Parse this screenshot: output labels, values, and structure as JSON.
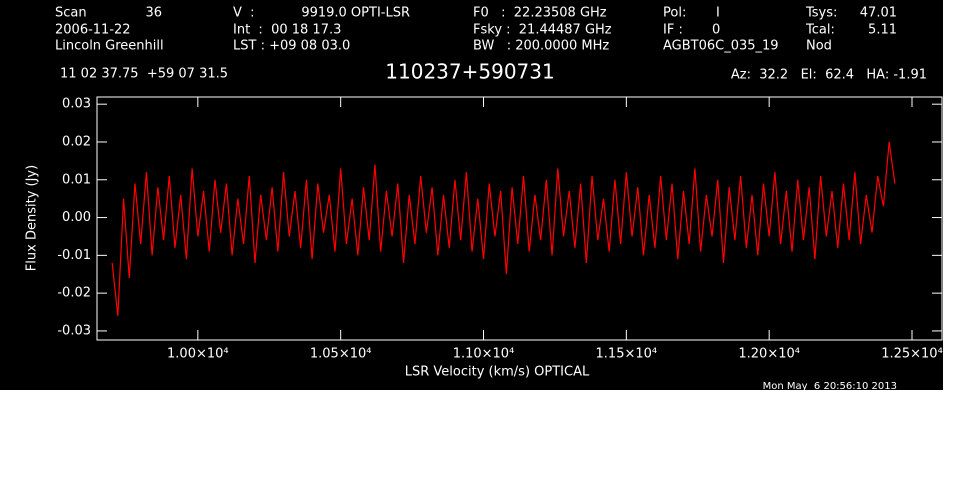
{
  "header": {
    "scan_label": "Scan",
    "scan": "36",
    "date": "2006-11-22",
    "observer": "Lincoln Greenhill",
    "v_label": "V  :",
    "v": "9919.0 OPTI-LSR",
    "int": "Int  :  00 18 17.3",
    "lst": "LST : +09 08 03.0",
    "f0": "F0   :  22.23508 GHz",
    "fsky": "Fsky :  21.44487 GHz",
    "bw": "BW   : 200.0000 MHz",
    "pol_label": "Pol:",
    "pol": "I",
    "if_label": "IF :",
    "if": "0",
    "project": "AGBT06C_035_19",
    "tsys_label": "Tsys:",
    "tsys": "47.01",
    "tcal_label": "Tcal:",
    "tcal": "5.11",
    "proc": "Nod",
    "coords": "11 02 37.75  +59 07 31.5",
    "azel": "Az:  32.2   El:  62.4   HA: -1.91",
    "timestamp": "Mon May  6 20:56:10 2013"
  },
  "chart_data": {
    "type": "line",
    "title": "110237+590731",
    "x_label": "LSR Velocity (km/s) OPTICAL",
    "y_label": "Flux Density (Jy)",
    "xlim": [
      9647,
      12605
    ],
    "ylim": [
      -0.0324,
      0.0319
    ],
    "xticks": [
      {
        "value": 10000,
        "label": "1.00×10⁴"
      },
      {
        "value": 10500,
        "label": "1.05×10⁴"
      },
      {
        "value": 11000,
        "label": "1.10×10⁴"
      },
      {
        "value": 11500,
        "label": "1.15×10⁴"
      },
      {
        "value": 12000,
        "label": "1.20×10⁴"
      },
      {
        "value": 12500,
        "label": "1.25×10⁴"
      }
    ],
    "yticks": [
      -0.03,
      -0.02,
      -0.01,
      {
        "value": 0,
        "label": "0.00"
      },
      0.01,
      0.02,
      0.03
    ],
    "series": [
      {
        "color": "#ff0000",
        "x": [
          9700,
          9720,
          9740,
          9760,
          9780,
          9800,
          9820,
          9840,
          9860,
          9880,
          9900,
          9920,
          9940,
          9960,
          9980,
          10000,
          10020,
          10040,
          10060,
          10080,
          10100,
          10120,
          10140,
          10160,
          10180,
          10200,
          10220,
          10240,
          10260,
          10280,
          10300,
          10320,
          10340,
          10360,
          10380,
          10400,
          10420,
          10440,
          10460,
          10480,
          10500,
          10520,
          10540,
          10560,
          10580,
          10600,
          10620,
          10640,
          10660,
          10680,
          10700,
          10720,
          10740,
          10760,
          10780,
          10800,
          10820,
          10840,
          10860,
          10880,
          10900,
          10920,
          10940,
          10960,
          10980,
          11000,
          11020,
          11040,
          11060,
          11080,
          11100,
          11120,
          11140,
          11160,
          11180,
          11200,
          11220,
          11240,
          11260,
          11280,
          11300,
          11320,
          11340,
          11360,
          11380,
          11400,
          11420,
          11440,
          11460,
          11480,
          11500,
          11520,
          11540,
          11560,
          11580,
          11600,
          11620,
          11640,
          11660,
          11680,
          11700,
          11720,
          11740,
          11760,
          11780,
          11800,
          11820,
          11840,
          11860,
          11880,
          11900,
          11920,
          11940,
          11960,
          11980,
          12000,
          12020,
          12040,
          12060,
          12080,
          12100,
          12120,
          12140,
          12160,
          12180,
          12200,
          12220,
          12240,
          12260,
          12280,
          12300,
          12320,
          12340,
          12360,
          12380,
          12400,
          12420,
          12440
        ],
        "values": [
          -0.012,
          -0.026,
          0.005,
          -0.016,
          0.009,
          -0.007,
          0.012,
          -0.01,
          0.008,
          -0.006,
          0.011,
          -0.008,
          0.006,
          -0.011,
          0.013,
          -0.005,
          0.007,
          -0.009,
          0.01,
          -0.004,
          0.009,
          -0.01,
          0.005,
          -0.007,
          0.011,
          -0.012,
          0.006,
          -0.006,
          0.008,
          -0.009,
          0.012,
          -0.005,
          0.007,
          -0.008,
          0.01,
          -0.011,
          0.009,
          -0.004,
          0.006,
          -0.009,
          0.013,
          -0.007,
          0.005,
          -0.01,
          0.008,
          -0.006,
          0.014,
          -0.009,
          0.007,
          -0.005,
          0.009,
          -0.012,
          0.006,
          -0.007,
          0.011,
          -0.004,
          0.008,
          -0.01,
          0.006,
          -0.008,
          0.01,
          -0.006,
          0.012,
          -0.009,
          0.005,
          -0.011,
          0.009,
          -0.005,
          0.007,
          -0.015,
          0.008,
          -0.007,
          0.011,
          -0.009,
          0.006,
          -0.006,
          0.01,
          -0.01,
          0.013,
          -0.005,
          0.007,
          -0.008,
          0.009,
          -0.012,
          0.011,
          -0.006,
          0.005,
          -0.009,
          0.01,
          -0.007,
          0.012,
          -0.005,
          0.008,
          -0.01,
          0.006,
          -0.008,
          0.011,
          -0.006,
          0.009,
          -0.011,
          0.007,
          -0.007,
          0.013,
          -0.009,
          0.006,
          -0.005,
          0.01,
          -0.012,
          0.008,
          -0.006,
          0.011,
          -0.008,
          0.006,
          -0.01,
          0.009,
          -0.005,
          0.012,
          -0.007,
          0.007,
          -0.009,
          0.01,
          -0.006,
          0.008,
          -0.011,
          0.011,
          -0.005,
          0.007,
          -0.008,
          0.009,
          -0.006,
          0.012,
          -0.007,
          0.006,
          -0.004,
          0.011,
          0.003,
          0.02,
          0.009
        ]
      }
    ]
  }
}
